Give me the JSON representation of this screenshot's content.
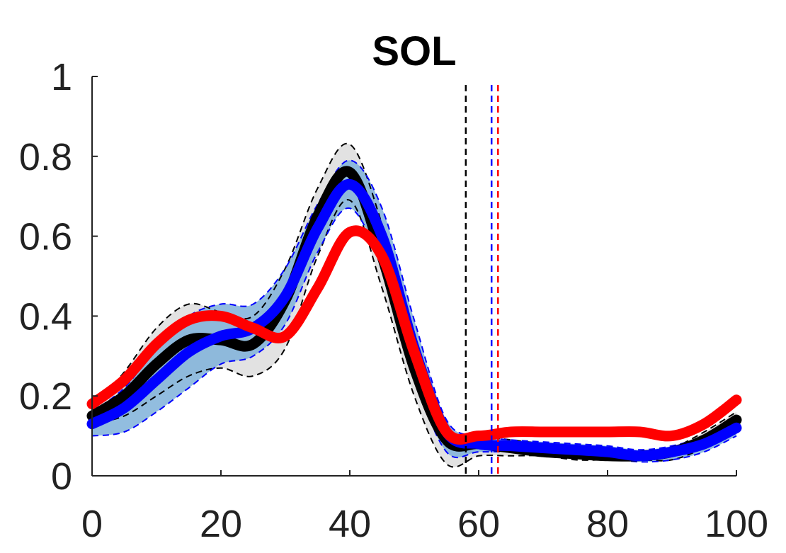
{
  "chart_data": {
    "type": "line",
    "title": "SOL",
    "xlabel": "",
    "ylabel": "",
    "xlim": [
      0,
      100
    ],
    "ylim": [
      0,
      1
    ],
    "x_ticks": [
      0,
      20,
      40,
      60,
      80,
      100
    ],
    "y_ticks": [
      0,
      0.2,
      0.4,
      0.6,
      0.8,
      1
    ],
    "x_tick_labels": [
      "0",
      "20",
      "40",
      "60",
      "80",
      "100"
    ],
    "y_tick_labels": [
      "0",
      "0.2",
      "0.4",
      "0.6",
      "0.8",
      "1"
    ],
    "grid": false,
    "legend": "none",
    "x": [
      0,
      5,
      10,
      15,
      20,
      25,
      30,
      35,
      40,
      45,
      50,
      55,
      60,
      65,
      70,
      75,
      80,
      85,
      90,
      95,
      100
    ],
    "series": [
      {
        "color": "#000000",
        "values": [
          0.15,
          0.2,
          0.28,
          0.34,
          0.34,
          0.33,
          0.44,
          0.65,
          0.76,
          0.55,
          0.27,
          0.09,
          0.08,
          0.07,
          0.06,
          0.055,
          0.05,
          0.05,
          0.06,
          0.09,
          0.14
        ],
        "band_upper": [
          0.17,
          0.26,
          0.37,
          0.43,
          0.41,
          0.4,
          0.52,
          0.72,
          0.83,
          0.63,
          0.33,
          0.12,
          0.1,
          0.09,
          0.08,
          0.07,
          0.06,
          0.06,
          0.07,
          0.11,
          0.16
        ],
        "band_lower": [
          0.13,
          0.15,
          0.2,
          0.25,
          0.27,
          0.25,
          0.32,
          0.55,
          0.69,
          0.47,
          0.2,
          0.03,
          0.05,
          0.05,
          0.05,
          0.04,
          0.04,
          0.04,
          0.04,
          0.07,
          0.11
        ],
        "band_color": "#d8d8d8"
      },
      {
        "color": "#0000ff",
        "values": [
          0.13,
          0.17,
          0.24,
          0.31,
          0.35,
          0.37,
          0.45,
          0.62,
          0.73,
          0.6,
          0.32,
          0.11,
          0.08,
          0.075,
          0.07,
          0.065,
          0.06,
          0.05,
          0.06,
          0.08,
          0.12
        ],
        "band_upper": [
          0.16,
          0.22,
          0.32,
          0.4,
          0.43,
          0.43,
          0.52,
          0.68,
          0.79,
          0.67,
          0.39,
          0.14,
          0.1,
          0.09,
          0.085,
          0.08,
          0.075,
          0.065,
          0.075,
          0.1,
          0.15
        ],
        "band_lower": [
          0.1,
          0.11,
          0.16,
          0.22,
          0.28,
          0.3,
          0.38,
          0.56,
          0.67,
          0.52,
          0.25,
          0.06,
          0.06,
          0.06,
          0.055,
          0.05,
          0.045,
          0.035,
          0.04,
          0.06,
          0.1
        ],
        "band_color": "#7fb2d9"
      },
      {
        "color": "#ff0000",
        "values": [
          0.18,
          0.24,
          0.33,
          0.39,
          0.4,
          0.37,
          0.35,
          0.47,
          0.61,
          0.55,
          0.31,
          0.11,
          0.1,
          0.11,
          0.11,
          0.11,
          0.11,
          0.11,
          0.1,
          0.13,
          0.19
        ]
      }
    ],
    "vlines": [
      {
        "x": 58,
        "color": "#000000"
      },
      {
        "x": 62,
        "color": "#0000ff"
      },
      {
        "x": 63,
        "color": "#ff0000"
      }
    ]
  }
}
